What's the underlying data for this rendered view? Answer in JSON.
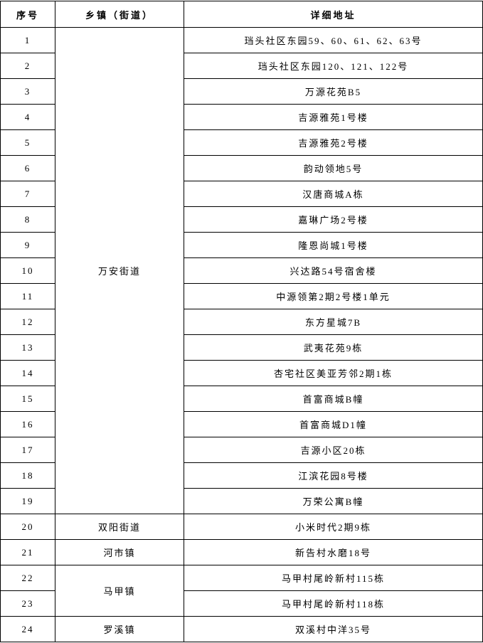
{
  "headers": {
    "no": "序号",
    "town": "乡镇（街道）",
    "address": "详细地址"
  },
  "towns": {
    "wanan": "万安街道",
    "shuangyang": "双阳街道",
    "heshi": "河市镇",
    "majia": "马甲镇",
    "luoxi": "罗溪镇"
  },
  "rows": [
    {
      "no": "1",
      "address": "珰头社区东园59、60、61、62、63号"
    },
    {
      "no": "2",
      "address": "珰头社区东园120、121、122号"
    },
    {
      "no": "3",
      "address": "万源花苑B5"
    },
    {
      "no": "4",
      "address": "吉源雅苑1号楼"
    },
    {
      "no": "5",
      "address": "吉源雅苑2号楼"
    },
    {
      "no": "6",
      "address": "韵动领地5号"
    },
    {
      "no": "7",
      "address": "汉唐商城A栋"
    },
    {
      "no": "8",
      "address": "嘉琳广场2号楼"
    },
    {
      "no": "9",
      "address": "隆恩尚城1号楼"
    },
    {
      "no": "10",
      "address": "兴达路54号宿舍楼"
    },
    {
      "no": "11",
      "address": "中源领第2期2号楼1单元"
    },
    {
      "no": "12",
      "address": "东方星城7B"
    },
    {
      "no": "13",
      "address": "武夷花苑9栋"
    },
    {
      "no": "14",
      "address": "杏宅社区美亚芳邻2期1栋"
    },
    {
      "no": "15",
      "address": "首富商城B幢"
    },
    {
      "no": "16",
      "address": "首富商城D1幢"
    },
    {
      "no": "17",
      "address": "吉源小区20栋"
    },
    {
      "no": "18",
      "address": "江滨花园8号楼"
    },
    {
      "no": "19",
      "address": "万荣公寓B幢"
    },
    {
      "no": "20",
      "address": "小米时代2期9栋"
    },
    {
      "no": "21",
      "address": "新告村水磨18号"
    },
    {
      "no": "22",
      "address": "马甲村尾岭新村115栋"
    },
    {
      "no": "23",
      "address": "马甲村尾岭新村118栋"
    },
    {
      "no": "24",
      "address": "双溪村中洋35号"
    }
  ]
}
